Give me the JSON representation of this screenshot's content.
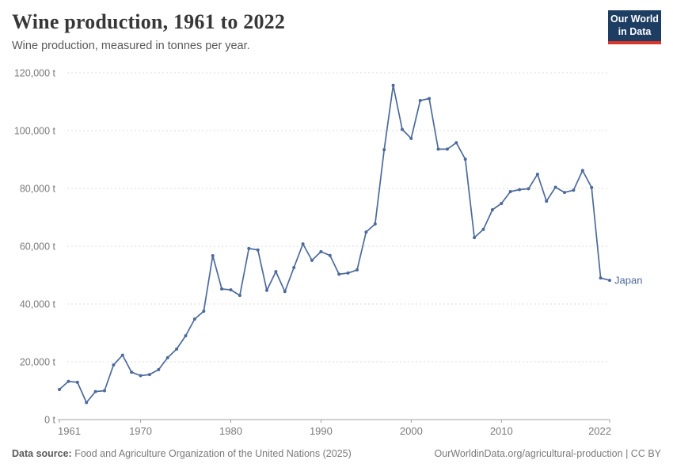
{
  "header": {
    "title": "Wine production, 1961 to 2022",
    "subtitle": "Wine production, measured in tonnes per year."
  },
  "logo": {
    "line1": "Our World",
    "line2": "in Data"
  },
  "footer": {
    "source_label": "Data source:",
    "source_text": "Food and Agriculture Organization of the United Nations (2025)",
    "right_link": "OurWorldinData.org/agricultural-production",
    "right_suffix": " | CC BY"
  },
  "colors": {
    "line": "#4C6A9C",
    "series_label": "#4C6A9C",
    "grid": "#dddddd",
    "axis": "#a2a2a2",
    "tick_text": "#7a7a7a",
    "logo_bg": "#1d3d63",
    "logo_red": "#dc362b"
  },
  "chart_data": {
    "type": "line",
    "title": "Wine production, 1961 to 2022",
    "subtitle": "Wine production, measured in tonnes per year.",
    "xlabel": "",
    "ylabel": "",
    "x_range": [
      1961,
      2022
    ],
    "ylim": [
      0,
      120000
    ],
    "grid": true,
    "legend_position": "end-of-line-label",
    "y_ticks": [
      {
        "value": 0,
        "label": "0 t"
      },
      {
        "value": 20000,
        "label": "20,000 t"
      },
      {
        "value": 40000,
        "label": "40,000 t"
      },
      {
        "value": 60000,
        "label": "60,000 t"
      },
      {
        "value": 80000,
        "label": "80,000 t"
      },
      {
        "value": 100000,
        "label": "100,000 t"
      },
      {
        "value": 120000,
        "label": "120,000 t"
      }
    ],
    "x_ticks": [
      {
        "value": 1961,
        "label": "1961"
      },
      {
        "value": 1970,
        "label": "1970"
      },
      {
        "value": 1980,
        "label": "1980"
      },
      {
        "value": 1990,
        "label": "1990"
      },
      {
        "value": 2000,
        "label": "2000"
      },
      {
        "value": 2010,
        "label": "2010"
      },
      {
        "value": 2022,
        "label": "2022"
      }
    ],
    "series": [
      {
        "name": "Japan",
        "color": "#4C6A9C",
        "x": [
          1961,
          1962,
          1963,
          1964,
          1965,
          1966,
          1967,
          1968,
          1969,
          1970,
          1971,
          1972,
          1973,
          1974,
          1975,
          1976,
          1977,
          1978,
          1979,
          1980,
          1981,
          1982,
          1983,
          1984,
          1985,
          1986,
          1987,
          1988,
          1989,
          1990,
          1991,
          1992,
          1993,
          1994,
          1995,
          1996,
          1997,
          1998,
          1999,
          2000,
          2001,
          2002,
          2003,
          2004,
          2005,
          2006,
          2007,
          2008,
          2009,
          2010,
          2011,
          2012,
          2013,
          2014,
          2015,
          2016,
          2017,
          2018,
          2019,
          2020,
          2021,
          2022
        ],
        "values": [
          10400,
          13200,
          12900,
          5900,
          9700,
          10000,
          18900,
          22300,
          16400,
          15200,
          15600,
          17300,
          21400,
          24400,
          29000,
          34800,
          37500,
          56700,
          45200,
          44900,
          43000,
          59200,
          58700,
          44700,
          51200,
          44300,
          52600,
          60800,
          55100,
          58100,
          56800,
          50300,
          50700,
          51800,
          64900,
          67700,
          93400,
          115700,
          100400,
          97300,
          110400,
          111100,
          93600,
          93600,
          95800,
          90100,
          63000,
          65800,
          72600,
          74800,
          78900,
          79600,
          79900,
          84900,
          75600,
          80400,
          78600,
          79400,
          86200,
          80300,
          49000,
          48200
        ]
      }
    ]
  }
}
